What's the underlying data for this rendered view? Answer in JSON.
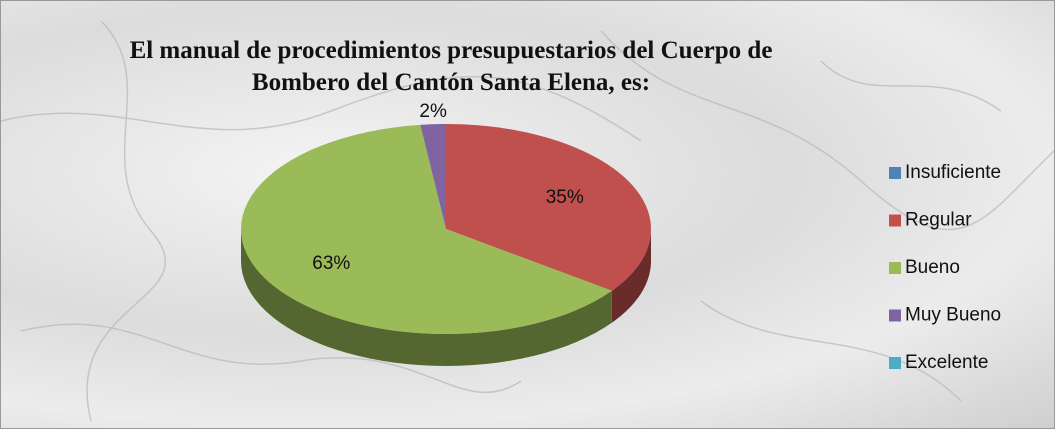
{
  "chart_data": {
    "type": "pie3d",
    "title": "El manual de procedimientos presupuestarios del Cuerpo de\nBombero del Cantón Santa Elena, es:",
    "categories": [
      "Insuficiente",
      "Regular",
      "Bueno",
      "Muy Bueno",
      "Excelente"
    ],
    "values": [
      0,
      35,
      63,
      2,
      0
    ],
    "value_labels": [
      null,
      "35%",
      "63%",
      "2%",
      null
    ],
    "colors": [
      "#4f81bd",
      "#c0504d",
      "#9bbb59",
      "#8064a2",
      "#4bacc6"
    ],
    "legend": "right"
  }
}
